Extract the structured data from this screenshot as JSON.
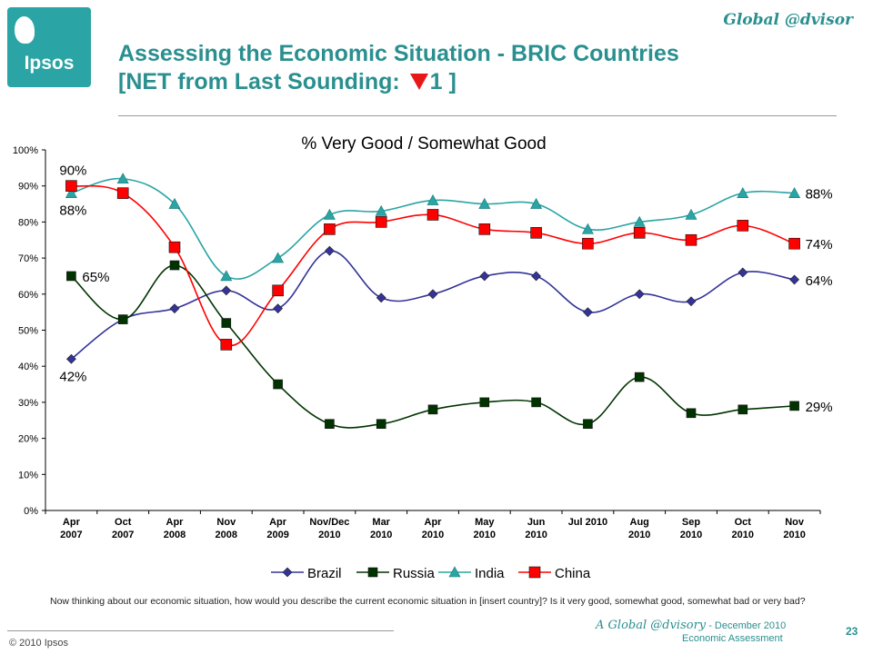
{
  "header": {
    "logo_text": "Ipsos",
    "brand": "Global @dvisor",
    "title_part1": "Assessing the Economic Situation - ",
    "title_part2": "BRIC Countries",
    "title_line2_pre": "[NET from Last Sounding: ",
    "title_line2_num": "1",
    "title_line2_post": " ]",
    "net_direction": "down",
    "net_color": "#e81818"
  },
  "chart_data": {
    "type": "line",
    "title": "% Very Good / Somewhat Good",
    "categories": [
      [
        "Apr",
        "2007"
      ],
      [
        "Oct",
        "2007"
      ],
      [
        "Apr",
        "2008"
      ],
      [
        "Nov",
        "2008"
      ],
      [
        "Apr",
        "2009"
      ],
      [
        "Nov/Dec",
        "2010"
      ],
      [
        "Mar",
        "2010"
      ],
      [
        "Apr",
        "2010"
      ],
      [
        "May",
        "2010"
      ],
      [
        "Jun",
        "2010"
      ],
      [
        "Jul 2010",
        ""
      ],
      [
        "Aug",
        "2010"
      ],
      [
        "Sep",
        "2010"
      ],
      [
        "Oct",
        "2010"
      ],
      [
        "Nov",
        "2010"
      ]
    ],
    "ylim": [
      0,
      100
    ],
    "yticks": [
      "0%",
      "10%",
      "20%",
      "30%",
      "40%",
      "50%",
      "60%",
      "70%",
      "80%",
      "90%",
      "100%"
    ],
    "legend_position": "bottom",
    "series": [
      {
        "name": "Brazil",
        "color": "#333399",
        "marker": "diamond",
        "values": [
          42,
          53,
          56,
          61,
          56,
          72,
          59,
          60,
          65,
          65,
          55,
          60,
          58,
          66,
          64
        ]
      },
      {
        "name": "Russia",
        "color": "#003300",
        "marker": "square",
        "values": [
          65,
          53,
          68,
          52,
          35,
          24,
          24,
          28,
          30,
          30,
          24,
          37,
          27,
          28,
          29
        ]
      },
      {
        "name": "India",
        "color": "#2aa4a4",
        "marker": "triangle",
        "values": [
          88,
          92,
          85,
          65,
          70,
          82,
          83,
          86,
          85,
          85,
          78,
          80,
          82,
          88,
          88
        ]
      },
      {
        "name": "China",
        "color": "#ff0000",
        "marker": "square",
        "values": [
          90,
          88,
          73,
          46,
          61,
          78,
          80,
          82,
          78,
          77,
          74,
          77,
          75,
          79,
          74
        ]
      }
    ],
    "annotations": [
      {
        "text": "90%",
        "series": "China",
        "index": 0,
        "side": "above"
      },
      {
        "text": "88%",
        "series": "India",
        "index": 0,
        "side": "below"
      },
      {
        "text": "65%",
        "series": "Russia",
        "index": 0,
        "side": "right"
      },
      {
        "text": "42%",
        "series": "Brazil",
        "index": 0,
        "side": "below"
      },
      {
        "text": "88%",
        "series": "India",
        "index": 14,
        "side": "right"
      },
      {
        "text": "74%",
        "series": "China",
        "index": 14,
        "side": "right"
      },
      {
        "text": "64%",
        "series": "Brazil",
        "index": 14,
        "side": "right"
      },
      {
        "text": "29%",
        "series": "Russia",
        "index": 14,
        "side": "right"
      }
    ]
  },
  "question": "Now thinking about our economic situation, how would you describe the current economic situation in [insert country]?  Is it very good, somewhat good, somewhat bad or very bad?",
  "footer": {
    "copyright": "© 2010 Ipsos",
    "brand_name": "A Global @dvisory",
    "brand_date": " - December 2010",
    "subtitle": "Economic Assessment",
    "page": "23"
  }
}
